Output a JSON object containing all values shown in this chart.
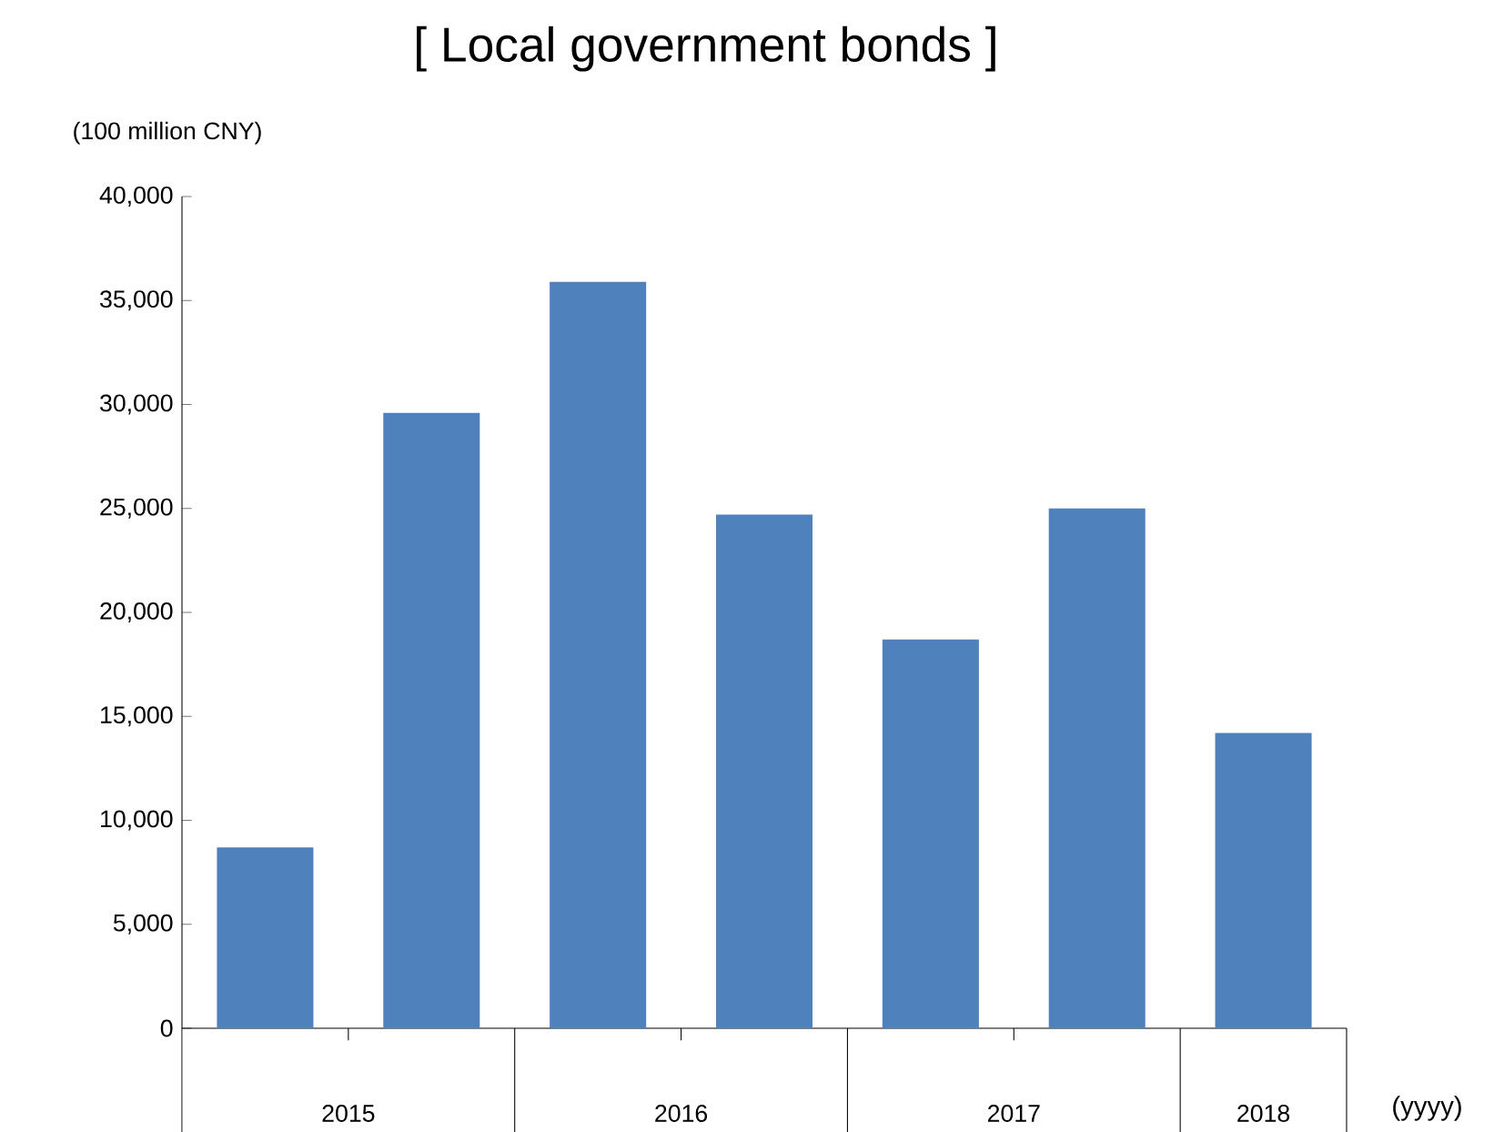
{
  "chart_data": {
    "type": "bar",
    "title": "[ Local government bonds ]",
    "ylabel": "(100 million CNY)",
    "xlabel": "(yyyy)",
    "categories": [
      "2015",
      null,
      "2016",
      null,
      "2017",
      null,
      "2018"
    ],
    "values": [
      8700,
      29600,
      35900,
      24700,
      18700,
      25000,
      14200
    ],
    "color": "#4f81bd",
    "ylim": [
      0,
      40000
    ],
    "yticks": [
      0,
      {
        "value": 5000,
        "label": "5,000"
      },
      {
        "value": 10000,
        "label": "10,000"
      },
      {
        "value": 15000,
        "label": "15,000"
      },
      {
        "value": 20000,
        "label": "20,000"
      },
      {
        "value": 25000,
        "label": "25,000"
      },
      {
        "value": 30000,
        "label": "30,000"
      },
      {
        "value": 35000,
        "label": "35,000"
      },
      {
        "value": 40000,
        "label": "40,000"
      }
    ],
    "grid": false
  }
}
